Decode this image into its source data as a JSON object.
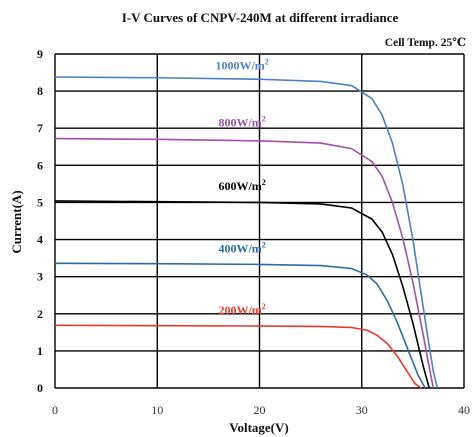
{
  "chart_data": {
    "type": "line",
    "title": "I-V Curves of CNPV-240M at different irradiance",
    "annotation": "Cell Temp. 25℃",
    "xlabel": "Voltage(V)",
    "ylabel": "Current(A)",
    "xlim": [
      0,
      40
    ],
    "ylim": [
      0,
      9
    ],
    "xticks": [
      "0",
      "10",
      "20",
      "30",
      "40"
    ],
    "yticks": [
      "0",
      "1",
      "2",
      "3",
      "4",
      "5",
      "6",
      "7",
      "8",
      "9"
    ],
    "grid": true,
    "series": [
      {
        "name": "1000W/m",
        "name_sup": "2",
        "color": "#4f7fc4",
        "x": [
          0,
          10,
          20,
          26,
          29,
          31,
          32,
          33,
          34,
          35,
          36,
          36.5,
          37,
          37.4
        ],
        "y": [
          8.38,
          8.36,
          8.32,
          8.26,
          8.15,
          7.8,
          7.35,
          6.6,
          5.5,
          4.0,
          2.2,
          1.3,
          0.45,
          0
        ]
      },
      {
        "name": "800W/m",
        "name_sup": "2",
        "color": "#9e52a8",
        "x": [
          0,
          10,
          20,
          26,
          29,
          31,
          32,
          33,
          34,
          35,
          36,
          36.5,
          37
        ],
        "y": [
          6.72,
          6.7,
          6.66,
          6.6,
          6.45,
          6.1,
          5.7,
          5.0,
          4.05,
          2.85,
          1.45,
          0.7,
          0
        ]
      },
      {
        "name": "600W/m",
        "name_sup": "2",
        "color": "#000000",
        "x": [
          0,
          10,
          20,
          26,
          29,
          31,
          32,
          33,
          34,
          35,
          36,
          36.6
        ],
        "y": [
          5.04,
          5.02,
          5.0,
          4.96,
          4.85,
          4.55,
          4.2,
          3.6,
          2.75,
          1.75,
          0.6,
          0
        ]
      },
      {
        "name": "400W/m",
        "name_sup": "2",
        "color": "#2e6aa8",
        "x": [
          0,
          10,
          20,
          26,
          29,
          30.5,
          31.5,
          32.5,
          33.5,
          34.5,
          35.5,
          36.2
        ],
        "y": [
          3.36,
          3.35,
          3.33,
          3.3,
          3.22,
          3.05,
          2.8,
          2.35,
          1.75,
          1.05,
          0.35,
          0
        ]
      },
      {
        "name": "200W/m",
        "name_sup": "2",
        "color": "#e63a2c",
        "x": [
          0,
          10,
          20,
          26,
          29,
          30.5,
          31.5,
          32.5,
          33.5,
          34.5,
          35.2,
          35.8
        ],
        "y": [
          1.69,
          1.68,
          1.67,
          1.66,
          1.63,
          1.56,
          1.42,
          1.2,
          0.85,
          0.42,
          0.12,
          0
        ]
      }
    ]
  }
}
